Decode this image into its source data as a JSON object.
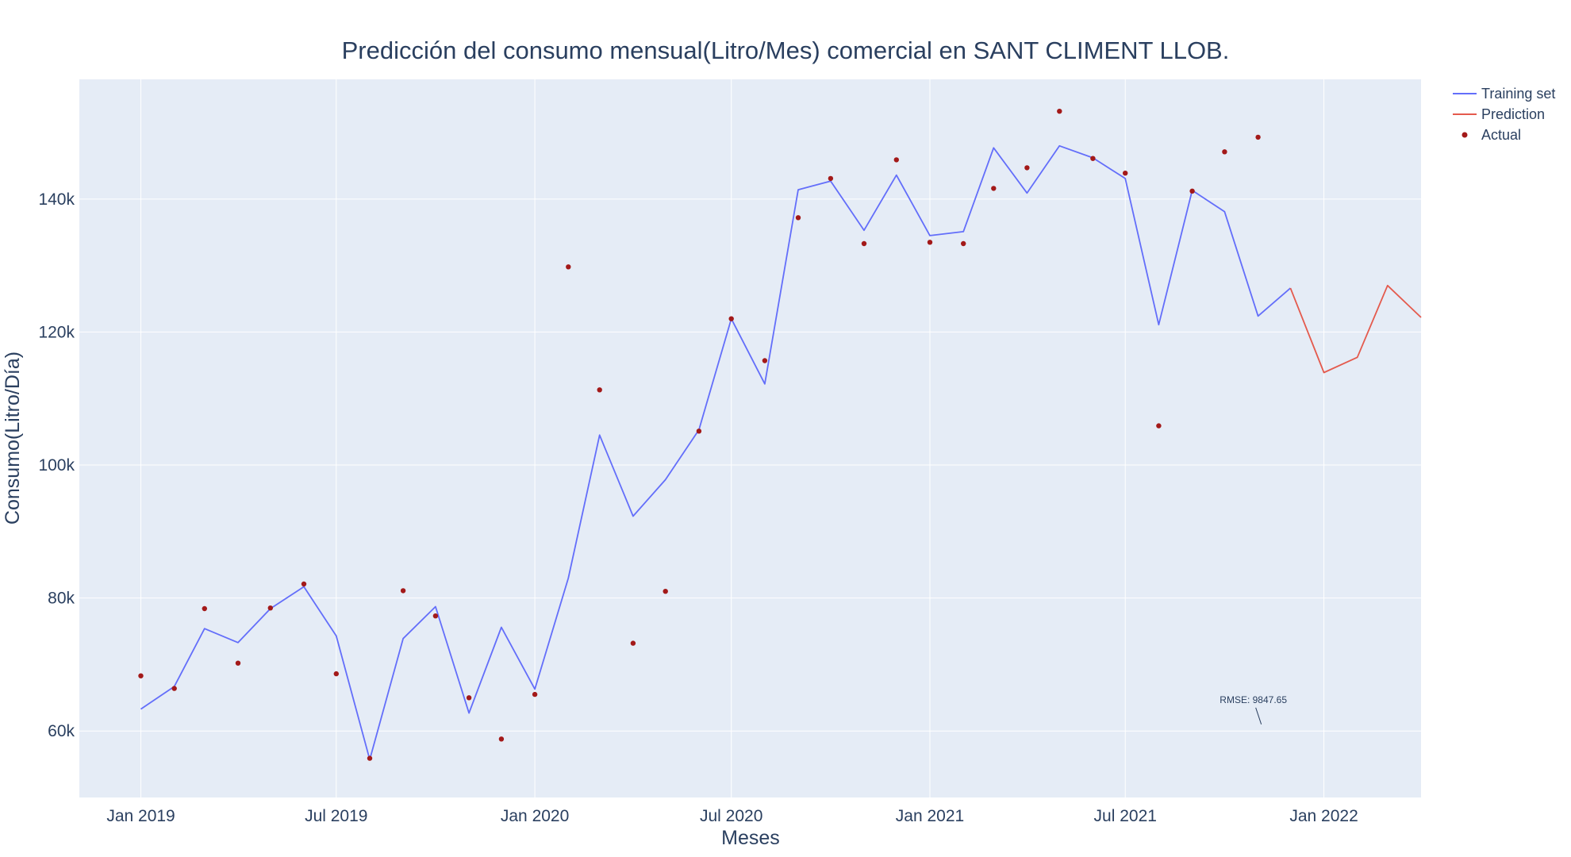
{
  "chart_data": {
    "type": "line",
    "title": "Predicción del consumo mensual(Litro/Mes) comercial en SANT CLIMENT LLOB.",
    "xlabel": "Meses",
    "ylabel": "Consumo(Litro/Día)",
    "x_ticks": [
      "Jan 2019",
      "Jul 2019",
      "Jan 2020",
      "Jul 2020",
      "Jan 2021",
      "Jul 2021",
      "Jan 2022"
    ],
    "y_ticks": [
      "60k",
      "80k",
      "100k",
      "120k",
      "140k"
    ],
    "ylim": [
      50000,
      158000
    ],
    "xlim": [
      "2018-11-05",
      "2022-04-01"
    ],
    "grid": true,
    "legend_position": "top-right",
    "colors": {
      "training": "#636efa",
      "prediction": "#e45a4d",
      "actual": "#a31919",
      "plot_bg": "#e5ecf6"
    },
    "series": [
      {
        "name": "Training set",
        "type": "line",
        "x": [
          "2019-01-01",
          "2019-02-01",
          "2019-03-01",
          "2019-04-01",
          "2019-05-01",
          "2019-06-01",
          "2019-07-01",
          "2019-08-01",
          "2019-09-01",
          "2019-10-01",
          "2019-11-01",
          "2019-12-01",
          "2020-01-01",
          "2020-02-01",
          "2020-03-01",
          "2020-04-01",
          "2020-05-01",
          "2020-06-01",
          "2020-07-01",
          "2020-08-01",
          "2020-09-01",
          "2020-10-01",
          "2020-11-01",
          "2020-12-01",
          "2021-01-01",
          "2021-02-01",
          "2021-03-01",
          "2021-04-01",
          "2021-05-01",
          "2021-06-01",
          "2021-07-01",
          "2021-08-01",
          "2021-09-01",
          "2021-10-01",
          "2021-11-01",
          "2021-12-01"
        ],
        "y": [
          63300,
          66700,
          75400,
          73300,
          78400,
          81700,
          74300,
          55700,
          73900,
          78700,
          62700,
          75600,
          66300,
          83000,
          104500,
          92300,
          97800,
          105300,
          122000,
          112200,
          141400,
          142700,
          135300,
          143600,
          134500,
          135100,
          147700,
          140900,
          148000,
          146200,
          143100,
          121100,
          141300,
          138100,
          122400,
          126600
        ]
      },
      {
        "name": "Prediction",
        "type": "line",
        "x": [
          "2021-12-01",
          "2022-01-01",
          "2022-02-01",
          "2022-03-01",
          "2022-04-01"
        ],
        "y": [
          126600,
          113900,
          116200,
          127000,
          122200
        ]
      },
      {
        "name": "Actual",
        "type": "scatter",
        "x": [
          "2019-01-01",
          "2019-02-01",
          "2019-03-01",
          "2019-04-01",
          "2019-05-01",
          "2019-06-01",
          "2019-07-01",
          "2019-08-01",
          "2019-09-01",
          "2019-10-01",
          "2019-11-01",
          "2019-12-01",
          "2020-01-01",
          "2020-02-01",
          "2020-03-01",
          "2020-04-01",
          "2020-05-01",
          "2020-06-01",
          "2020-07-01",
          "2020-08-01",
          "2020-09-01",
          "2020-10-01",
          "2020-11-01",
          "2020-12-01",
          "2021-01-01",
          "2021-02-01",
          "2021-03-01",
          "2021-04-01",
          "2021-05-01",
          "2021-06-01",
          "2021-07-01",
          "2021-08-01",
          "2021-09-01",
          "2021-10-01",
          "2021-11-01"
        ],
        "y": [
          68300,
          66400,
          78400,
          70200,
          78500,
          82100,
          68600,
          55900,
          81100,
          77300,
          65000,
          58800,
          65500,
          129800,
          111300,
          73200,
          81000,
          105100,
          122000,
          115700,
          137200,
          143100,
          133300,
          145900,
          133500,
          133300,
          141600,
          144700,
          153200,
          146100,
          143900,
          105900,
          141200,
          147100,
          149300
        ]
      }
    ],
    "annotations": [
      {
        "text": "RMSE: 9847.65",
        "x": "2021-11-04",
        "y": 61000
      }
    ]
  }
}
